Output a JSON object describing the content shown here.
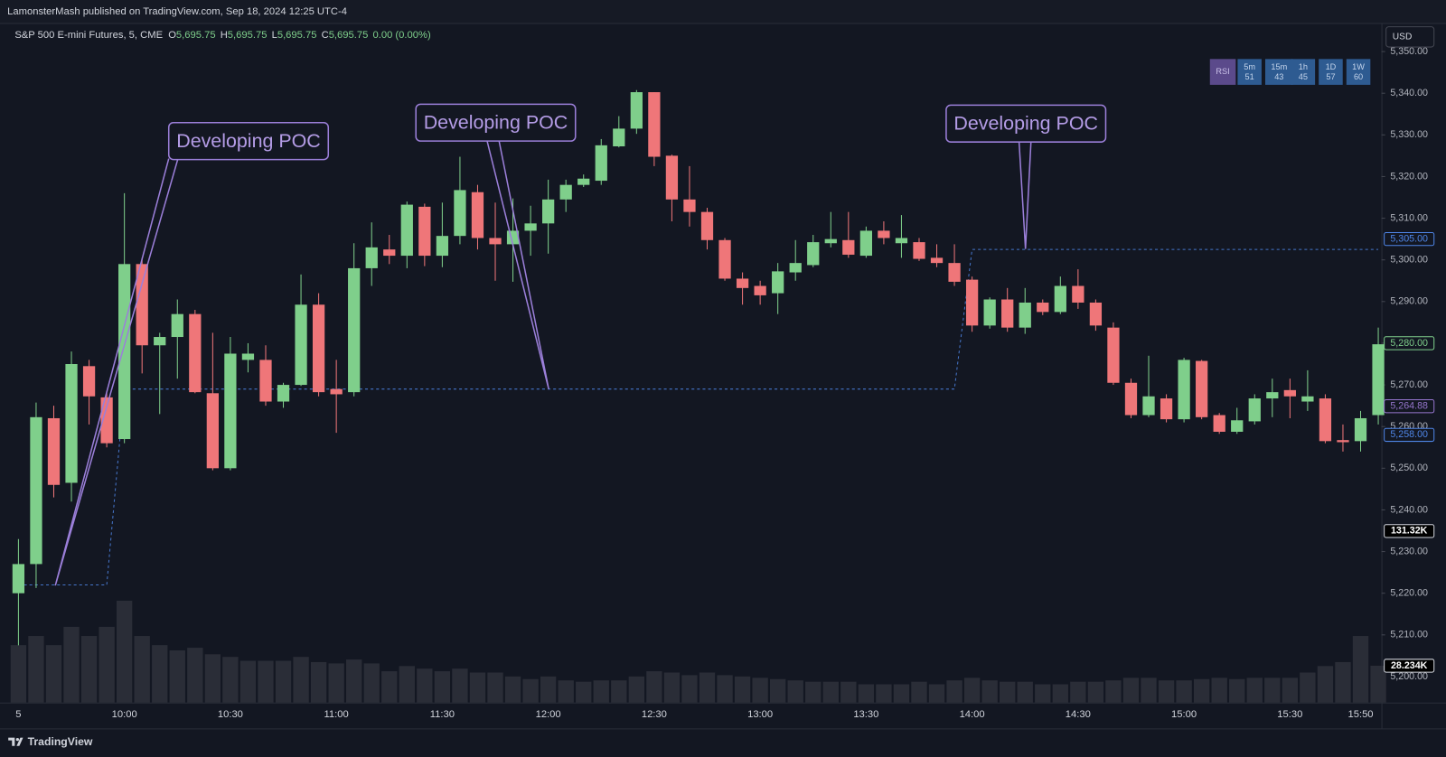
{
  "chart_data": {
    "type": "candlestick",
    "attribution": "LamonsterMash published on TradingView.com, Sep 18, 2024 12:25 UTC-4",
    "title": "S&P 500 E-mini Futures, 5, CME",
    "ohlc_legend": [
      {
        "key": "O",
        "value": "5,695.75"
      },
      {
        "key": "H",
        "value": "5,695.75"
      },
      {
        "key": "L",
        "value": "5,695.75"
      },
      {
        "key": "C",
        "value": "5,695.75"
      }
    ],
    "change": "0.00 (0.00%)",
    "currency": "USD",
    "brand": "TradingView",
    "categories": [
      "5",
      null,
      null,
      null,
      null,
      null,
      "10:00",
      null,
      null,
      null,
      null,
      null,
      "10:30",
      null,
      null,
      null,
      null,
      null,
      "11:00",
      null,
      null,
      null,
      null,
      null,
      "11:30",
      null,
      null,
      null,
      null,
      null,
      "12:00",
      null,
      null,
      null,
      null,
      null,
      "12:30",
      null,
      null,
      null,
      null,
      null,
      "13:00",
      null,
      null,
      null,
      null,
      null,
      "13:30",
      null,
      null,
      null,
      null,
      null,
      "14:00",
      null,
      null,
      null,
      null,
      null,
      "14:30",
      null,
      null,
      null,
      null,
      null,
      "15:00",
      null,
      null,
      null,
      null,
      null,
      "15:30",
      null,
      null,
      null,
      "15:50",
      null
    ],
    "open": [
      5220,
      5227,
      5262,
      5246.5,
      5274.5,
      5267,
      5257,
      5299,
      5279.5,
      5281.5,
      5287,
      5268,
      5250,
      5276,
      5276,
      5266,
      5270,
      5289.25,
      5269,
      5268.25,
      5298,
      5302.5,
      5301,
      5312.75,
      5301,
      5305.75,
      5316.25,
      5305.25,
      5303.75,
      5307,
      5308.75,
      5314.5,
      5318,
      5319,
      5327.25,
      5331.5,
      5340.25,
      5325,
      5314.5,
      5311.5,
      5304.75,
      5295.5,
      5293.75,
      5292,
      5297,
      5298.75,
      5304,
      5304.75,
      5301,
      5307,
      5304,
      5304.25,
      5300.5,
      5299.25,
      5295.25,
      5284.25,
      5290.5,
      5283.75,
      5289.75,
      5287.5,
      5293.75,
      5289.75,
      5283.75,
      5270.5,
      5262.75,
      5266.75,
      5261.75,
      5275.75,
      5262.75,
      5258.75,
      5261.25,
      5266.75,
      5268.75,
      5266,
      5266.75,
      5256.75,
      5256.5,
      5262.75
    ],
    "high": [
      5233,
      5265.75,
      5265,
      5278,
      5276,
      5268,
      5316,
      5300.5,
      5282.5,
      5290.5,
      5288,
      5282.5,
      5281.5,
      5280,
      5279.5,
      5270.5,
      5296.5,
      5292,
      5276,
      5304,
      5309,
      5306,
      5314,
      5313.5,
      5313.75,
      5324.75,
      5318,
      5313.75,
      5314.75,
      5313,
      5319.25,
      5319.25,
      5320.5,
      5329,
      5334.5,
      5340.75,
      5340.25,
      5325.25,
      5322.5,
      5312.5,
      5305.25,
      5297,
      5295,
      5299.25,
      5304.75,
      5306,
      5311.5,
      5311.5,
      5308,
      5309.25,
      5310.75,
      5305.25,
      5303.75,
      5303.75,
      5296,
      5291,
      5293.25,
      5293.25,
      5290.5,
      5296,
      5297.75,
      5290.5,
      5285,
      5271.5,
      5277,
      5267.75,
      5276.5,
      5276,
      5263.25,
      5264.5,
      5267.75,
      5271.5,
      5271.5,
      5273.5,
      5267.75,
      5260.5,
      5263.75,
      5283.75
    ],
    "low": [
      5207.5,
      5221.25,
      5243,
      5242,
      5260.5,
      5255,
      5256,
      5272.75,
      5263,
      5271.5,
      5268,
      5249.5,
      5249.5,
      5273,
      5265,
      5264.5,
      5269.75,
      5267.25,
      5258.5,
      5267.25,
      5293.75,
      5299,
      5298,
      5298.5,
      5298.25,
      5303.75,
      5302.5,
      5295,
      5294.75,
      5301,
      5301.5,
      5311.5,
      5317.5,
      5318,
      5327,
      5330.25,
      5322.5,
      5309.25,
      5308,
      5302.5,
      5295,
      5289.25,
      5289.25,
      5287,
      5295,
      5298.25,
      5303,
      5300.5,
      5300.5,
      5303.75,
      5300.5,
      5299.75,
      5298.25,
      5293.75,
      5282.75,
      5283.5,
      5282.75,
      5282.25,
      5286.75,
      5287,
      5288.25,
      5283,
      5270,
      5262,
      5262.25,
      5261,
      5261,
      5261.75,
      5258.25,
      5258.25,
      5260.5,
      5262.25,
      5262,
      5263.75,
      5256,
      5254,
      5254,
      5260.5
    ],
    "close": [
      5227,
      5262.25,
      5246,
      5275,
      5267.25,
      5256,
      5299,
      5279.5,
      5281.5,
      5287,
      5268.25,
      5250,
      5277.5,
      5277.5,
      5266,
      5270,
      5289.25,
      5268.25,
      5267.75,
      5298,
      5303,
      5301,
      5313.25,
      5301,
      5305.75,
      5316.75,
      5305.25,
      5303.75,
      5307,
      5308.75,
      5314.5,
      5318,
      5319.5,
      5327.5,
      5331.5,
      5340.25,
      5324.75,
      5314.5,
      5311.5,
      5304.75,
      5295.5,
      5293.25,
      5291.5,
      5297.25,
      5299.25,
      5304.25,
      5305,
      5301.25,
      5307,
      5305.25,
      5305.25,
      5300.25,
      5299.25,
      5294.75,
      5284.25,
      5290.5,
      5283.75,
      5289.75,
      5287.5,
      5293.75,
      5289.75,
      5284.25,
      5270.5,
      5262.75,
      5267.25,
      5261.75,
      5276,
      5262.25,
      5258.75,
      5261.5,
      5266.75,
      5268.25,
      5267.25,
      5267.25,
      5256.5,
      5256.25,
      5262,
      5279.75
    ],
    "up_color": "#7fcf8b",
    "down_color": "#ef7679",
    "ylim": [
      5193.75,
      5351.75
    ],
    "yticks": [
      {
        "value": 5200,
        "label": "5,200.00"
      },
      {
        "value": 5210,
        "label": "5,210.00"
      },
      {
        "value": 5220,
        "label": "5,220.00"
      },
      {
        "value": 5230,
        "label": "5,230.00"
      },
      {
        "value": 5240,
        "label": "5,240.00"
      },
      {
        "value": 5250,
        "label": "5,250.00"
      },
      {
        "value": 5260,
        "label": "5,260.00"
      },
      {
        "value": 5270,
        "label": "5,270.00"
      },
      {
        "value": 5280,
        "label": "5,280.00"
      },
      {
        "value": 5290,
        "label": "5,290.00"
      },
      {
        "value": 5300,
        "label": "5,300.00"
      },
      {
        "value": 5310,
        "label": "5,310.00"
      },
      {
        "value": 5320,
        "label": "5,320.00"
      },
      {
        "value": 5330,
        "label": "5,330.00"
      },
      {
        "value": 5340,
        "label": "5,340.00"
      },
      {
        "value": 5350,
        "label": "5,350.00"
      }
    ],
    "grid": false,
    "price_labels": [
      {
        "value": 5305,
        "label": "5,305.00",
        "color": "#4f86e8"
      },
      {
        "value": 5280,
        "label": "5,280.00",
        "color": "#7fcf8b"
      },
      {
        "value": 5264.88,
        "label": "5,264.88",
        "color": "#9575cd"
      },
      {
        "value": 5258,
        "label": "5,258.00",
        "color": "#4f86e8"
      }
    ],
    "volume": {
      "color": "#2a2d37",
      "ylim": [
        0,
        504000
      ],
      "values": [
        44000,
        51000,
        44000,
        58000,
        51000,
        58000,
        78000,
        51000,
        44000,
        40000,
        42000,
        37000,
        35000,
        32000,
        32000,
        32000,
        35000,
        31000,
        30000,
        33000,
        30000,
        24000,
        28000,
        26000,
        24000,
        26000,
        23000,
        23000,
        20000,
        18000,
        20000,
        17000,
        16000,
        17000,
        17000,
        20000,
        24000,
        23000,
        21000,
        23000,
        21000,
        20000,
        19000,
        18000,
        17000,
        16000,
        16000,
        16000,
        14000,
        14000,
        14000,
        16000,
        14000,
        17000,
        19000,
        17000,
        16000,
        16000,
        14000,
        14000,
        16000,
        16000,
        17000,
        19000,
        19000,
        17000,
        17000,
        18000,
        19000,
        18000,
        19000,
        19000,
        19000,
        23000,
        28000,
        31000,
        51000,
        28234
      ],
      "labels": [
        {
          "value": 131320,
          "label": "131.32K"
        },
        {
          "value": 28234,
          "label": "28.234K"
        }
      ]
    },
    "poc": {
      "color": "#4f86e8",
      "values": [
        5222,
        5222,
        5222,
        5222,
        5222,
        5222,
        5269,
        5269,
        5269,
        5269,
        5269,
        5269,
        5269,
        5269,
        5269,
        5269,
        5269,
        5269,
        5269,
        5269,
        5269,
        5269,
        5269,
        5269,
        5269,
        5269,
        5269,
        5269,
        5269,
        5269,
        5269,
        5269,
        5269,
        5269,
        5269,
        5269,
        5269,
        5269,
        5269,
        5269,
        5269,
        5269,
        5269,
        5269,
        5269,
        5269,
        5269,
        5269,
        5269,
        5269,
        5269,
        5269,
        5269,
        5269,
        5302.5,
        5302.5,
        5302.5,
        5302.5,
        5302.5,
        5302.5,
        5302.5,
        5302.5,
        5302.5,
        5302.5,
        5302.5,
        5302.5,
        5302.5,
        5302.5,
        5302.5,
        5302.5,
        5302.5,
        5302.5,
        5302.5,
        5302.5,
        5302.5,
        5302.5,
        5302.5,
        5302.5
      ]
    },
    "annotations": [
      "Developing POC",
      "Developing POC",
      "Developing POC"
    ],
    "rsi_panel": {
      "label": "RSI",
      "cells": [
        {
          "timeframe": "5m",
          "value": 51
        },
        {
          "timeframe": "15m",
          "value": 43
        },
        {
          "timeframe": "1h",
          "value": 45
        },
        {
          "timeframe": "1D",
          "value": 57
        },
        {
          "timeframe": "1W",
          "value": 60
        }
      ]
    }
  }
}
